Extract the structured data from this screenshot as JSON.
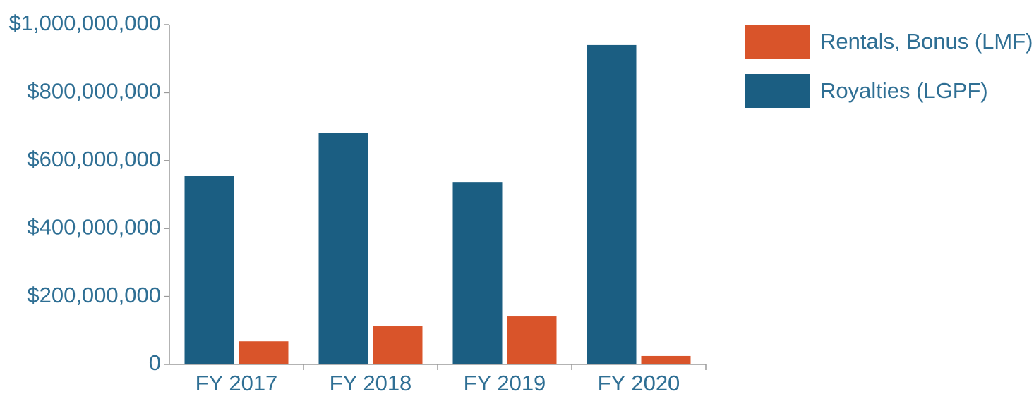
{
  "chart_data": {
    "type": "bar",
    "categories": [
      "FY 2017",
      "FY 2018",
      "FY 2019",
      "FY 2020"
    ],
    "series": [
      {
        "name": "Royalties (LGPF)",
        "color": "#1b5e82",
        "values": [
          556000000,
          682000000,
          537000000,
          940000000
        ]
      },
      {
        "name": "Rentals, Bonus (LMF)",
        "color": "#d9542a",
        "values": [
          68000000,
          112000000,
          141000000,
          25000000
        ]
      }
    ],
    "ylim": [
      0,
      1000000000
    ],
    "yticks": [
      0,
      {
        "value": 200000000,
        "label": "$200,000,000"
      },
      {
        "value": 400000000,
        "label": "$400,000,000"
      },
      {
        "value": 600000000,
        "label": "$600,000,000"
      },
      {
        "value": 800000000,
        "label": "$800,000,000"
      },
      {
        "value": 1000000000,
        "label": "$1,000,000,000"
      }
    ],
    "grid": false
  }
}
